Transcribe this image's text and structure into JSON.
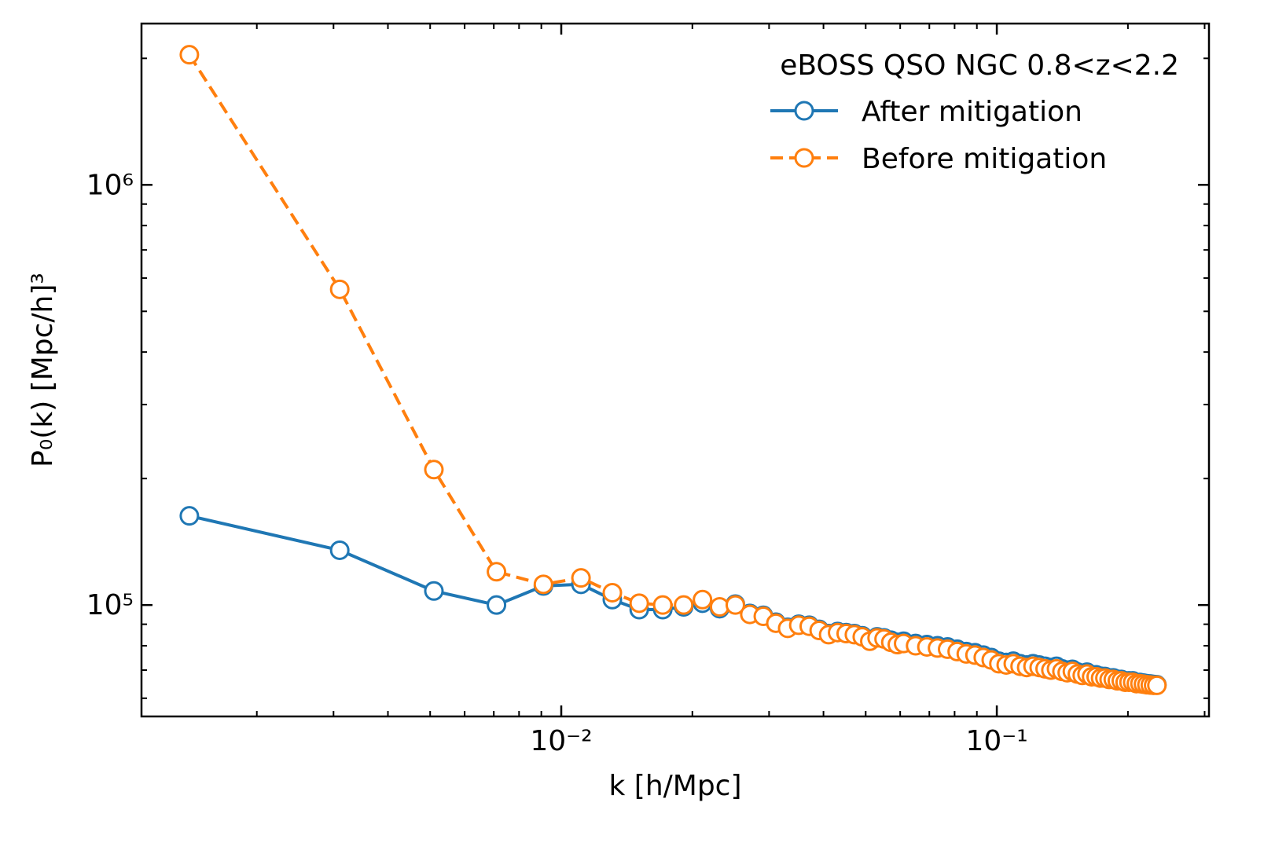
{
  "chart_data": {
    "type": "line",
    "x_label": "k [h/Mpc]",
    "y_label": "P₀(k) [Mpc/h]³",
    "legend_title": "eBOSS QSO NGC 0.8<z<2.2",
    "legend": "upper right",
    "xscale": "log",
    "yscale": "log",
    "xlim": [
      0.001087,
      0.307
    ],
    "ylim": [
      54300,
      2420000
    ],
    "xticks": [
      {
        "value": 0.01,
        "label": "10⁻²"
      },
      {
        "value": 0.1,
        "label": "10⁻¹"
      }
    ],
    "yticks": [
      {
        "value": 100000,
        "label": "10⁵"
      },
      {
        "value": 1000000,
        "label": "10⁶"
      }
    ],
    "x": [
      0.0014,
      0.0031,
      0.0051,
      0.0071,
      0.0091,
      0.0111,
      0.0131,
      0.0151,
      0.0171,
      0.0191,
      0.0211,
      0.0231,
      0.0251,
      0.0271,
      0.0291,
      0.0311,
      0.0331,
      0.0351,
      0.0371,
      0.0391,
      0.0411,
      0.0431,
      0.0451,
      0.0471,
      0.0491,
      0.0511,
      0.0531,
      0.0551,
      0.0571,
      0.0591,
      0.0611,
      0.0651,
      0.0691,
      0.0731,
      0.0771,
      0.0811,
      0.0851,
      0.0891,
      0.0931,
      0.0971,
      0.1011,
      0.1051,
      0.1091,
      0.1131,
      0.1171,
      0.1211,
      0.1251,
      0.1291,
      0.1331,
      0.1371,
      0.1411,
      0.1451,
      0.1491,
      0.1531,
      0.1571,
      0.1611,
      0.1651,
      0.1691,
      0.1731,
      0.1771,
      0.1811,
      0.1851,
      0.1891,
      0.1931,
      0.1971,
      0.2011,
      0.2051,
      0.2091,
      0.2131,
      0.2171,
      0.2211,
      0.2251,
      0.2291,
      0.2331
    ],
    "series": [
      {
        "name": "After mitigation",
        "color": "#1f77b4",
        "dash": false,
        "values": [
          163000,
          135000,
          108000,
          100000,
          111000,
          112000,
          103000,
          97500,
          97500,
          99000,
          101000,
          98000,
          100500,
          95500,
          94500,
          91000,
          88500,
          90000,
          89500,
          87500,
          85500,
          86500,
          86000,
          85500,
          84500,
          82500,
          84000,
          83500,
          82500,
          81500,
          82000,
          81000,
          80500,
          80000,
          79500,
          78500,
          77500,
          77000,
          76000,
          75000,
          73500,
          73000,
          73500,
          72500,
          72000,
          72500,
          72000,
          71500,
          71000,
          71500,
          70500,
          70000,
          70300,
          69300,
          68800,
          69200,
          68200,
          68200,
          67700,
          67600,
          67100,
          67100,
          66600,
          66500,
          66000,
          66000,
          66000,
          65400,
          65400,
          65200,
          65000,
          64900,
          64700,
          64600
        ]
      },
      {
        "name": "Before mitigation",
        "color": "#ff7f0e",
        "dash": true,
        "values": [
          2040000,
          564000,
          210000,
          120000,
          112000,
          116000,
          107000,
          101000,
          100000,
          100000,
          103000,
          99000,
          100000,
          95000,
          94000,
          90500,
          88000,
          89500,
          89000,
          87000,
          85000,
          86000,
          85500,
          85000,
          84000,
          82000,
          83500,
          83000,
          81500,
          80500,
          81000,
          80000,
          79500,
          79000,
          78500,
          77500,
          76500,
          76000,
          75000,
          74000,
          72500,
          72000,
          72500,
          71500,
          71000,
          71500,
          71000,
          70500,
          70000,
          70500,
          69500,
          69000,
          69500,
          68500,
          68000,
          68500,
          67500,
          67500,
          67000,
          67000,
          66500,
          66500,
          66000,
          66000,
          65500,
          65500,
          65500,
          65000,
          65000,
          64800,
          64600,
          64500,
          64400,
          64400
        ]
      }
    ]
  }
}
